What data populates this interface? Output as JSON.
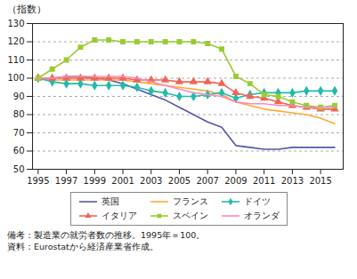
{
  "chart_data": {
    "type": "line",
    "ylabel": "（指数）",
    "x": [
      1995,
      1996,
      1997,
      1998,
      1999,
      2000,
      2001,
      2002,
      2003,
      2004,
      2005,
      2006,
      2007,
      2008,
      2009,
      2010,
      2011,
      2012,
      2013,
      2014,
      2015,
      2016
    ],
    "series": [
      {
        "name": "英国",
        "color": "#5555aa",
        "values": [
          100,
          100,
          101,
          101,
          100,
          99,
          97,
          94,
          91,
          88,
          84,
          80,
          76,
          73,
          63,
          62,
          61,
          61,
          62,
          62,
          62,
          62
        ]
      },
      {
        "name": "フランス",
        "color": "#ffaa33",
        "values": [
          100,
          99,
          99,
          99,
          99,
          99,
          99,
          98,
          97,
          96,
          95,
          94,
          93,
          91,
          87,
          85,
          83,
          82,
          81,
          80,
          78,
          75
        ]
      },
      {
        "name": "ドイツ",
        "color": "#22bbaa",
        "marker": "diamond",
        "values": [
          100,
          98,
          97,
          97,
          96,
          96,
          96,
          95,
          93,
          92,
          90,
          90,
          91,
          92,
          89,
          91,
          92,
          92,
          92,
          93,
          93,
          93
        ]
      },
      {
        "name": "イタリア",
        "color": "#ee6655",
        "marker": "triangle",
        "values": [
          100,
          100,
          100,
          100,
          100,
          100,
          100,
          99,
          99,
          99,
          98,
          98,
          98,
          97,
          92,
          90,
          89,
          87,
          85,
          84,
          83,
          83
        ]
      },
      {
        "name": "スペイン",
        "color": "#99cc33",
        "marker": "square",
        "values": [
          100,
          105,
          110,
          117,
          121,
          121,
          120,
          120,
          120,
          120,
          120,
          120,
          119,
          116,
          101,
          97,
          91,
          90,
          87,
          85,
          84,
          85
        ]
      },
      {
        "name": "オランダ",
        "color": "#ff88bb",
        "values": [
          100,
          100,
          101,
          101,
          101,
          101,
          101,
          100,
          98,
          96,
          94,
          92,
          91,
          90,
          87,
          86,
          86,
          85,
          85,
          84,
          84,
          84
        ]
      }
    ],
    "xlim": [
      1994.6,
      2016.6
    ],
    "xticks": [
      1995,
      1997,
      1999,
      2001,
      2003,
      2005,
      2007,
      2009,
      2011,
      2013,
      2015
    ],
    "ylim": [
      50,
      130
    ],
    "yticks": [
      50,
      60,
      70,
      80,
      90,
      100,
      110,
      120,
      130
    ],
    "grid": "y",
    "legend": "bottom",
    "annotations": [
      "備考：製造業の就労者数の推移。1995年＝100。",
      "資料：Eurostatから経済産業省作成。"
    ]
  }
}
